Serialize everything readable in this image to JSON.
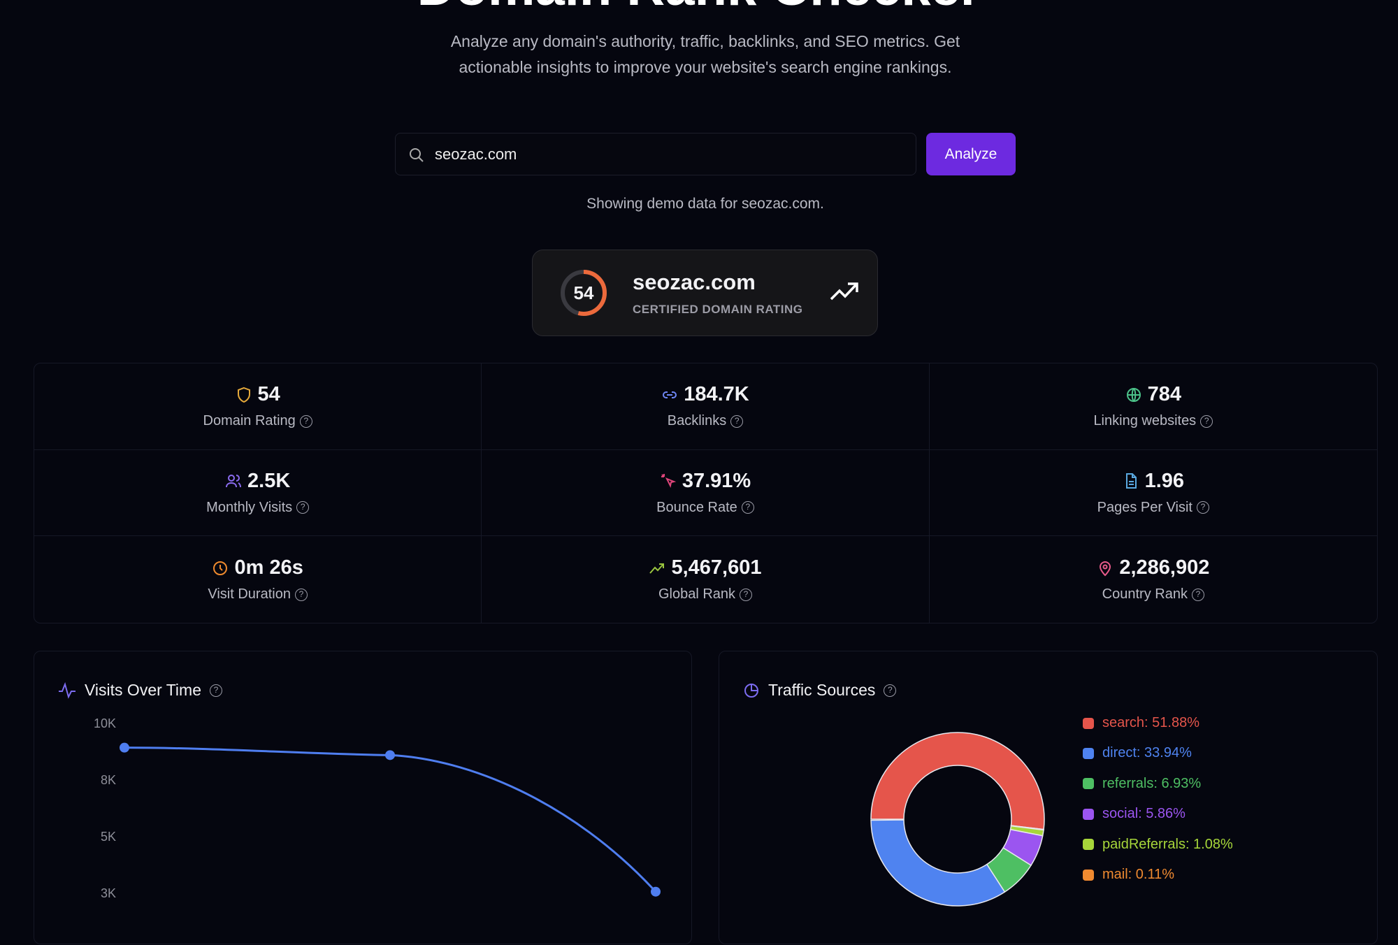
{
  "header": {
    "title": "Domain Rank Checker",
    "subtitle_line1": "Analyze any domain's authority, traffic, backlinks, and SEO metrics. Get",
    "subtitle_line2": "actionable insights to improve your website's search engine rankings."
  },
  "search": {
    "value": "seozac.com",
    "button": "Analyze",
    "status": "Showing demo data for seozac.com."
  },
  "rating_card": {
    "score": 54,
    "score_label": "54",
    "domain": "seozac.com",
    "caption": "CERTIFIED DOMAIN RATING"
  },
  "stats": [
    {
      "value": "54",
      "label": "Domain Rating",
      "icon": "shield-icon",
      "color": "#e5a93a"
    },
    {
      "value": "184.7K",
      "label": "Backlinks",
      "icon": "link-icon",
      "color": "#6f86f5"
    },
    {
      "value": "784",
      "label": "Linking websites",
      "icon": "globe-icon",
      "color": "#4cc38a"
    },
    {
      "value": "2.5K",
      "label": "Monthly Visits",
      "icon": "users-icon",
      "color": "#8b6cf0"
    },
    {
      "value": "37.91%",
      "label": "Bounce Rate",
      "icon": "pointer-click-icon",
      "color": "#e0457b"
    },
    {
      "value": "1.96",
      "label": "Pages Per Visit",
      "icon": "document-icon",
      "color": "#5aa8e0"
    },
    {
      "value": "0m 26s",
      "label": "Visit Duration",
      "icon": "clock-icon",
      "color": "#ef8a2e"
    },
    {
      "value": "5,467,601",
      "label": "Global Rank",
      "icon": "trending-up-icon",
      "color": "#9ac53f"
    },
    {
      "value": "2,286,902",
      "label": "Country Rank",
      "icon": "map-pin-icon",
      "color": "#e85a8a"
    }
  ],
  "chart_data": [
    {
      "type": "line",
      "title": "Visits Over Time",
      "y_ticks": [
        {
          "value": 10000,
          "label": "10K"
        },
        {
          "value": 7500,
          "label": "8K"
        },
        {
          "value": 5000,
          "label": "5K"
        },
        {
          "value": 2500,
          "label": "3K"
        }
      ],
      "x": [
        0,
        1,
        2
      ],
      "values": [
        8900,
        8570,
        2540
      ],
      "color": "#4f7ef0"
    },
    {
      "type": "pie",
      "title": "Traffic Sources",
      "slices": [
        {
          "name": "search",
          "value": 51.88,
          "label": "search: 51.88%",
          "color": "#e5554b"
        },
        {
          "name": "direct",
          "value": 33.94,
          "label": "direct: 33.94%",
          "color": "#4f83f0"
        },
        {
          "name": "referrals",
          "value": 6.93,
          "label": "referrals: 6.93%",
          "color": "#4ebf63"
        },
        {
          "name": "social",
          "value": 5.86,
          "label": "social: 5.86%",
          "color": "#9b55f0"
        },
        {
          "name": "paidReferrals",
          "value": 1.08,
          "label": "paidReferrals: 1.08%",
          "color": "#a7d63a"
        },
        {
          "name": "mail",
          "value": 0.11,
          "label": "mail: 0.11%",
          "color": "#f08a30"
        }
      ]
    }
  ],
  "help_glyph": "?"
}
